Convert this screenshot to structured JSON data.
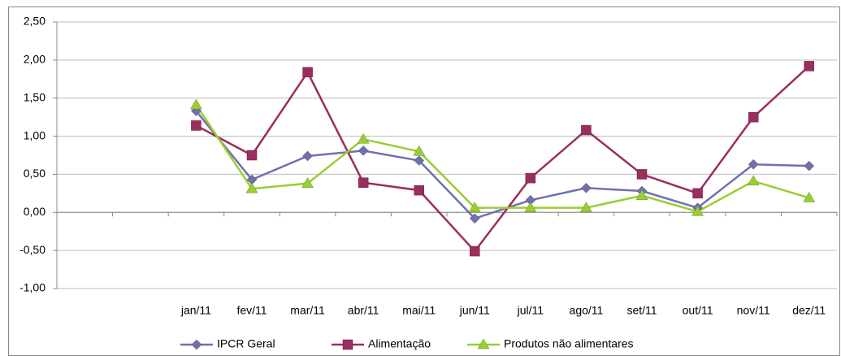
{
  "chart_data": {
    "type": "line",
    "categories": [
      null,
      null,
      "jan/11",
      "fev/11",
      "mar/11",
      "abr/11",
      "mai/11",
      "jun/11",
      "jul/11",
      "ago/11",
      "set/11",
      "out/11",
      "nov/11",
      "dez/11"
    ],
    "series": [
      {
        "name": "IPCR Geral",
        "color": "#7070b0",
        "marker": "diamond",
        "values": [
          null,
          null,
          1.33,
          0.43,
          0.74,
          0.81,
          0.68,
          -0.08,
          0.16,
          0.32,
          0.28,
          0.06,
          0.63,
          0.61
        ]
      },
      {
        "name": "Alimentação",
        "color": "#9b2d5f",
        "marker": "square",
        "values": [
          null,
          null,
          1.14,
          0.75,
          1.84,
          0.39,
          0.29,
          -0.51,
          0.45,
          1.08,
          0.5,
          0.25,
          1.25,
          1.92
        ]
      },
      {
        "name": "Produtos não alimentares",
        "color": "#9acd32",
        "marker": "triangle",
        "values": [
          null,
          null,
          1.41,
          0.31,
          0.38,
          0.96,
          0.8,
          0.06,
          0.06,
          0.06,
          0.22,
          0.01,
          0.41,
          0.19
        ]
      }
    ],
    "ylim": [
      -1,
      2.5
    ],
    "yticks": [
      {
        "value": -1,
        "label": "-1,00"
      },
      {
        "value": -0.5,
        "label": "-0,50"
      },
      {
        "value": 0,
        "label": "0,00"
      },
      {
        "value": 0.5,
        "label": "0,50"
      },
      {
        "value": 1,
        "label": "1,00"
      },
      {
        "value": 1.5,
        "label": "1,50"
      },
      {
        "value": 2,
        "label": "2,00"
      },
      {
        "value": 2.5,
        "label": "2,50"
      }
    ],
    "grid": true,
    "legend": "bottom"
  }
}
